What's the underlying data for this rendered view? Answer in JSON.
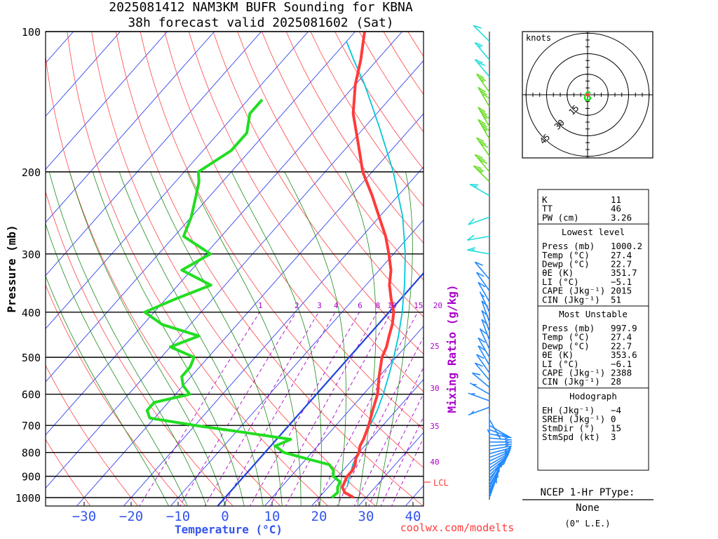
{
  "header": {
    "title_line1": "2025081412 NAM3KM BUFR Sounding for KBNA",
    "title_line2": "38h forecast valid 2025081602 (Sat)"
  },
  "footer": {
    "credit": "coolwx.com/modelts"
  },
  "colors": {
    "temperature": "#ff3b3b",
    "dewpoint": "#22dd22",
    "parcel": "#00c8d8",
    "isotherm": "#3344ee",
    "dry_adiabat": "#ff4444",
    "moist_adiabat": "#1a8a1a",
    "mixing_ratio": "#aa00cc",
    "wind_barb_low": "#2288ff",
    "wind_barb_high": "#22dddd",
    "wind_barb_mid": "#66dd22",
    "axis_label": "#3355ee"
  },
  "chart_data": {
    "type": "skew-t",
    "ylabel": "Pressure (mb)",
    "xlabel": "Temperature (°C)",
    "right_label": "Mixing Ratio (g/kg)",
    "pressure_ticks": [
      "100",
      "200",
      "300",
      "400",
      "500",
      "600",
      "700",
      "800",
      "900",
      "1000"
    ],
    "pressure_values": [
      100,
      200,
      300,
      400,
      500,
      600,
      700,
      800,
      900,
      1000
    ],
    "temperature_ticks": [
      "−30",
      "−20",
      "−10",
      "0",
      "10",
      "20",
      "30",
      "40"
    ],
    "temperature_values": [
      -30,
      -20,
      -10,
      0,
      10,
      20,
      30,
      40
    ],
    "xlim": [
      -40,
      42
    ],
    "ylim": [
      1050,
      100
    ],
    "mixing_ratio_labels_top": [
      "1",
      "2",
      "3",
      "4",
      "6",
      "8",
      "10",
      "15",
      "20"
    ],
    "mixing_ratio_labels_right": [
      "25",
      "30",
      "35",
      "40"
    ],
    "lcl_label": "LCL",
    "temperature_profile": [
      [
        1000,
        27.4
      ],
      [
        975,
        24.5
      ],
      [
        950,
        23
      ],
      [
        925,
        22.5
      ],
      [
        900,
        22
      ],
      [
        875,
        22
      ],
      [
        850,
        21.5
      ],
      [
        825,
        20.5
      ],
      [
        800,
        20
      ],
      [
        775,
        19
      ],
      [
        750,
        18.5
      ],
      [
        700,
        17
      ],
      [
        650,
        15
      ],
      [
        600,
        13
      ],
      [
        550,
        10
      ],
      [
        500,
        7
      ],
      [
        475,
        6
      ],
      [
        450,
        4.5
      ],
      [
        425,
        3
      ],
      [
        400,
        1
      ],
      [
        375,
        -2
      ],
      [
        350,
        -5
      ],
      [
        325,
        -7.5
      ],
      [
        300,
        -11
      ],
      [
        275,
        -15
      ],
      [
        250,
        -20
      ],
      [
        225,
        -25.5
      ],
      [
        200,
        -32
      ],
      [
        175,
        -38
      ],
      [
        150,
        -45
      ],
      [
        130,
        -50
      ],
      [
        115,
        -53.5
      ],
      [
        100,
        -58
      ]
    ],
    "dewpoint_profile": [
      [
        1000,
        22.7
      ],
      [
        975,
        23
      ],
      [
        950,
        22
      ],
      [
        925,
        21.5
      ],
      [
        900,
        19
      ],
      [
        875,
        18
      ],
      [
        850,
        16
      ],
      [
        825,
        10
      ],
      [
        800,
        4
      ],
      [
        775,
        1
      ],
      [
        750,
        3
      ],
      [
        725,
        -8
      ],
      [
        700,
        -20
      ],
      [
        675,
        -31
      ],
      [
        650,
        -33
      ],
      [
        625,
        -33
      ],
      [
        600,
        -27
      ],
      [
        575,
        -30
      ],
      [
        550,
        -32
      ],
      [
        525,
        -32
      ],
      [
        500,
        -33
      ],
      [
        475,
        -40
      ],
      [
        450,
        -36
      ],
      [
        425,
        -46
      ],
      [
        400,
        -52
      ],
      [
        375,
        -48
      ],
      [
        350,
        -43
      ],
      [
        325,
        -52
      ],
      [
        300,
        -49
      ],
      [
        275,
        -58
      ],
      [
        250,
        -60
      ],
      [
        225,
        -63
      ],
      [
        210,
        -65
      ],
      [
        200,
        -67
      ],
      [
        180,
        -64
      ],
      [
        165,
        -64
      ],
      [
        150,
        -67
      ],
      [
        140,
        -67
      ]
    ],
    "parcel_profile": [
      [
        950,
        24
      ],
      [
        900,
        22.5
      ],
      [
        850,
        21
      ],
      [
        800,
        19.8
      ],
      [
        750,
        18.5
      ],
      [
        700,
        17.3
      ],
      [
        650,
        16
      ],
      [
        600,
        14.2
      ],
      [
        550,
        12
      ],
      [
        500,
        9.5
      ],
      [
        450,
        6.5
      ],
      [
        400,
        2.8
      ],
      [
        350,
        -1.8
      ],
      [
        300,
        -7.5
      ],
      [
        250,
        -15
      ],
      [
        200,
        -25.5
      ],
      [
        160,
        -37
      ],
      [
        130,
        -48
      ],
      [
        115,
        -55
      ],
      [
        105,
        -60
      ]
    ],
    "wind_barbs": [
      {
        "p": 1000,
        "dir": 20,
        "spd": 3
      },
      {
        "p": 985,
        "dir": 20,
        "spd": 4
      },
      {
        "p": 970,
        "dir": 25,
        "spd": 4
      },
      {
        "p": 955,
        "dir": 25,
        "spd": 5
      },
      {
        "p": 940,
        "dir": 30,
        "spd": 5
      },
      {
        "p": 925,
        "dir": 30,
        "spd": 6
      },
      {
        "p": 910,
        "dir": 40,
        "spd": 6
      },
      {
        "p": 895,
        "dir": 45,
        "spd": 7
      },
      {
        "p": 880,
        "dir": 50,
        "spd": 8
      },
      {
        "p": 865,
        "dir": 55,
        "spd": 8
      },
      {
        "p": 850,
        "dir": 60,
        "spd": 9
      },
      {
        "p": 835,
        "dir": 65,
        "spd": 9
      },
      {
        "p": 820,
        "dir": 70,
        "spd": 8
      },
      {
        "p": 805,
        "dir": 75,
        "spd": 8
      },
      {
        "p": 790,
        "dir": 80,
        "spd": 8
      },
      {
        "p": 775,
        "dir": 85,
        "spd": 7
      },
      {
        "p": 760,
        "dir": 90,
        "spd": 7
      },
      {
        "p": 745,
        "dir": 95,
        "spd": 6
      },
      {
        "p": 730,
        "dir": 100,
        "spd": 6
      },
      {
        "p": 715,
        "dir": 110,
        "spd": 5
      },
      {
        "p": 700,
        "dir": 120,
        "spd": 5
      },
      {
        "p": 680,
        "dir": 150,
        "spd": 4
      },
      {
        "p": 660,
        "dir": 180,
        "spd": 4
      },
      {
        "p": 640,
        "dir": 250,
        "spd": 5
      },
      {
        "p": 620,
        "dir": 290,
        "spd": 6
      },
      {
        "p": 600,
        "dir": 300,
        "spd": 7
      },
      {
        "p": 580,
        "dir": 310,
        "spd": 8
      },
      {
        "p": 560,
        "dir": 320,
        "spd": 9
      },
      {
        "p": 540,
        "dir": 325,
        "spd": 10
      },
      {
        "p": 520,
        "dir": 330,
        "spd": 10
      },
      {
        "p": 500,
        "dir": 330,
        "spd": 10
      },
      {
        "p": 480,
        "dir": 335,
        "spd": 9
      },
      {
        "p": 460,
        "dir": 340,
        "spd": 9
      },
      {
        "p": 440,
        "dir": 340,
        "spd": 8
      },
      {
        "p": 420,
        "dir": 340,
        "spd": 8
      },
      {
        "p": 400,
        "dir": 335,
        "spd": 7
      },
      {
        "p": 380,
        "dir": 330,
        "spd": 8
      },
      {
        "p": 360,
        "dir": 325,
        "spd": 10
      },
      {
        "p": 340,
        "dir": 320,
        "spd": 12
      },
      {
        "p": 300,
        "dir": 280,
        "spd": 15
      },
      {
        "p": 275,
        "dir": 260,
        "spd": 12
      },
      {
        "p": 250,
        "dir": 250,
        "spd": 10
      },
      {
        "p": 225,
        "dir": 300,
        "spd": 15
      },
      {
        "p": 210,
        "dir": 315,
        "spd": 25
      },
      {
        "p": 200,
        "dir": 320,
        "spd": 30
      },
      {
        "p": 185,
        "dir": 325,
        "spd": 32
      },
      {
        "p": 170,
        "dir": 330,
        "spd": 35
      },
      {
        "p": 160,
        "dir": 330,
        "spd": 35
      },
      {
        "p": 145,
        "dir": 330,
        "spd": 30
      },
      {
        "p": 135,
        "dir": 325,
        "spd": 25
      },
      {
        "p": 125,
        "dir": 320,
        "spd": 20
      },
      {
        "p": 115,
        "dir": 320,
        "spd": 15
      },
      {
        "p": 105,
        "dir": 315,
        "spd": 10
      }
    ],
    "hodograph": {
      "label": "knots",
      "ring_labels": [
        "15",
        "30",
        "45"
      ],
      "ring_values": [
        15,
        30,
        45
      ],
      "trace": [
        [
          0,
          0
        ],
        [
          1,
          -1
        ],
        [
          2,
          -2
        ],
        [
          2,
          -3
        ],
        [
          1,
          -4
        ],
        [
          -1,
          -4
        ],
        [
          -2,
          -3
        ],
        [
          -2,
          -1
        ],
        [
          -1,
          1
        ],
        [
          0,
          2
        ],
        [
          1,
          2
        ],
        [
          2,
          1
        ]
      ]
    }
  },
  "indices": {
    "top": [
      {
        "label": "K",
        "value": "11"
      },
      {
        "label": "TT",
        "value": "46"
      },
      {
        "label": "PW (cm)",
        "value": "3.26"
      }
    ],
    "lowest_level": {
      "title": "Lowest level",
      "rows": [
        {
          "label": "Press (mb)",
          "value": "1000.2"
        },
        {
          "label": "Temp (°C)",
          "value": "27.4"
        },
        {
          "label": "Dewp (°C)",
          "value": "22.7"
        },
        {
          "label": "θE (K)",
          "value": "351.7"
        },
        {
          "label": "LI (°C)",
          "value": "−5.1"
        },
        {
          "label": "CAPE (Jkg⁻¹)",
          "value": "2015"
        },
        {
          "label": "CIN (Jkg⁻¹)",
          "value": "51"
        }
      ]
    },
    "most_unstable": {
      "title": "Most Unstable",
      "rows": [
        {
          "label": "Press (mb)",
          "value": "997.9"
        },
        {
          "label": "Temp (°C)",
          "value": "27.4"
        },
        {
          "label": "Dewp (°C)",
          "value": "22.7"
        },
        {
          "label": "θE (K)",
          "value": "353.6"
        },
        {
          "label": "LI (°C)",
          "value": "−6.1"
        },
        {
          "label": "CAPE (Jkg⁻¹)",
          "value": "2388"
        },
        {
          "label": "CIN (Jkg⁻¹)",
          "value": "28"
        }
      ]
    },
    "hodograph_box": {
      "title": "Hodograph",
      "rows": [
        {
          "label": "EH (Jkg⁻¹)",
          "value": "−4"
        },
        {
          "label": "SREH (Jkg⁻¹)",
          "value": "0"
        },
        {
          "label": "StmDir (°)",
          "value": "15"
        },
        {
          "label": "StmSpd (kt)",
          "value": "3"
        }
      ]
    }
  },
  "ptype": {
    "title": "NCEP 1-Hr PType:",
    "value": "None",
    "note": "(0\" L.E.)"
  }
}
